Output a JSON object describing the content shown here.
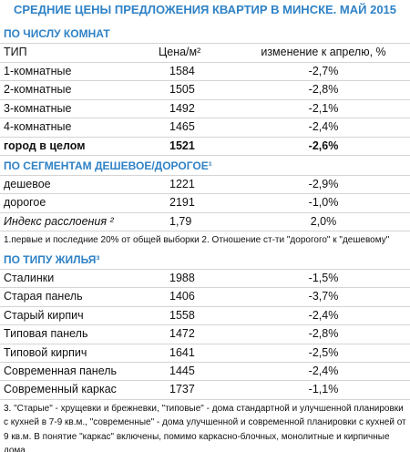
{
  "title": "СРЕДНИЕ ЦЕНЫ ПРЕДЛОЖЕНИЯ КВАРТИР В МИНСКЕ. МАЙ 2015",
  "sections": [
    {
      "heading": "ПО ЧИСЛУ КОМНАТ",
      "columns": [
        "ТИП",
        "Цена/м²",
        "изменение к апрелю, %"
      ],
      "rows": [
        [
          "1-комнатные",
          "1584",
          "-2,7%"
        ],
        [
          "2-комнатные",
          "1505",
          "-2,8%"
        ],
        [
          "3-комнатные",
          "1492",
          "-2,1%"
        ],
        [
          "4-комнатные",
          "1465",
          "-2,4%"
        ],
        [
          "город в целом",
          "1521",
          "-2,6%"
        ]
      ]
    },
    {
      "heading": "ПО СЕГМЕНТАМ ДЕШЕВОЕ/ДОРОГОЕ¹",
      "rows": [
        [
          "дешевое",
          "1221",
          "-2,9%"
        ],
        [
          "дорогое",
          "2191",
          "-1,0%"
        ],
        [
          "Индекс расслоения ²",
          "1,79",
          "2,0%"
        ]
      ],
      "note": "1.первые и последние 20% от общей выборки 2. Отношение ст-ти \"дорогого\" к \"дешевому\""
    },
    {
      "heading": "ПО ТИПУ ЖИЛЬЯ³",
      "rows": [
        [
          "Сталинки",
          "1988",
          "-1,5%"
        ],
        [
          "Старая панель",
          "1406",
          "-3,7%"
        ],
        [
          "Старый кирпич",
          "1558",
          "-2,4%"
        ],
        [
          "Типовая панель",
          "1472",
          "-2,8%"
        ],
        [
          "Типовой кирпич",
          "1641",
          "-2,5%"
        ],
        [
          "Современная панель",
          "1445",
          "-2,4%"
        ],
        [
          "Современный каркас",
          "1737",
          "-1,1%"
        ]
      ],
      "note": "3. \"Старые\" - хрущевки и брежневки, \"типовые\" - дома стандартной и улучшенной планировки с кухней в 7-9 кв.м., \"современные\" - дома улучшенной и современной планировки с кухней от 9 кв.м. В понятие \"каркас\" включены, помимо каркасно-блочных, монолитные и кирпичные дома."
    }
  ]
}
